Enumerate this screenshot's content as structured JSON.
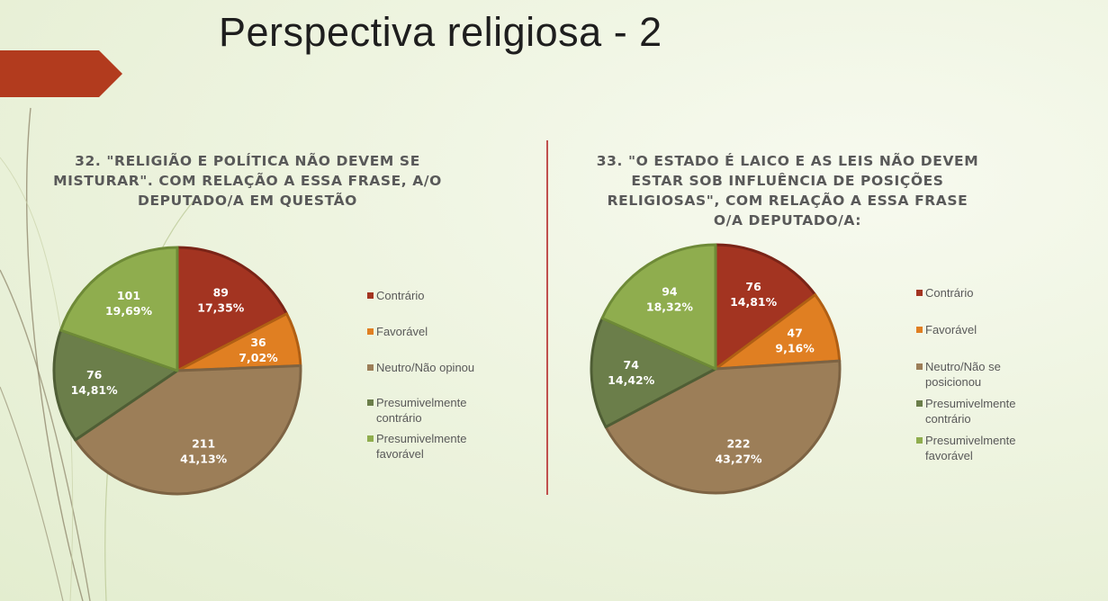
{
  "title": "Perspectiva religiosa - 2",
  "chart_data": [
    {
      "type": "pie",
      "title": "32. \"RELIGIÃO E POLÍTICA NÃO DEVEM SE MISTURAR\". COM RELAÇÃO A ESSA FRASE, A/O DEPUTADO/A EM QUESTÃO",
      "title_lines": [
        "32. \"RELIGIÃO E POLÍTICA NÃO DEVEM SE",
        "MISTURAR\". COM RELAÇÃO A ESSA FRASE, A/O",
        "DEPUTADO/A EM QUESTÃO"
      ],
      "categories": [
        "Contrário",
        "Favorável",
        "Neutro/Não opinou",
        "Presumivelmente contrário",
        "Presumivelmente favorável"
      ],
      "legend_lines": [
        [
          "Contrário"
        ],
        [
          "Favorável"
        ],
        [
          "Neutro/Não opinou"
        ],
        [
          "Presumivelmente",
          "contrário"
        ],
        [
          "Presumivelmente",
          "favorável"
        ]
      ],
      "values": [
        89,
        36,
        211,
        76,
        101
      ],
      "percent_labels": [
        "17,35%",
        "7,02%",
        "41,13%",
        "14,81%",
        "19,69%"
      ],
      "colors": [
        "#a33421",
        "#e07f22",
        "#9c7e58",
        "#6b7e4a",
        "#8fad4e"
      ],
      "legend_position": "right"
    },
    {
      "type": "pie",
      "title": "33. \"O ESTADO É LAICO E AS LEIS NÃO DEVEM ESTAR SOB INFLUÊNCIA DE POSIÇÕES RELIGIOSAS\", COM RELAÇÃO A ESSA FRASE O/A DEPUTADO/A:",
      "title_lines": [
        "33. \"O ESTADO É LAICO E AS LEIS NÃO DEVEM",
        "ESTAR SOB INFLUÊNCIA DE POSIÇÕES",
        "RELIGIOSAS\", COM RELAÇÃO A ESSA FRASE",
        "O/A DEPUTADO/A:"
      ],
      "categories": [
        "Contrário",
        "Favorável",
        "Neutro/Não se posicionou",
        "Presumivelmente contrário",
        "Presumivelmente favorável"
      ],
      "legend_lines": [
        [
          "Contrário"
        ],
        [
          "Favorável"
        ],
        [
          "Neutro/Não se",
          "posicionou"
        ],
        [
          "Presumivelmente",
          "contrário"
        ],
        [
          "Presumivelmente",
          "favorável"
        ]
      ],
      "values": [
        76,
        47,
        222,
        74,
        94
      ],
      "percent_labels": [
        "14,81%",
        "9,16%",
        "43,27%",
        "14,42%",
        "18,32%"
      ],
      "colors": [
        "#a33421",
        "#e07f22",
        "#9c7e58",
        "#6b7e4a",
        "#8fad4e"
      ],
      "legend_position": "right"
    }
  ]
}
